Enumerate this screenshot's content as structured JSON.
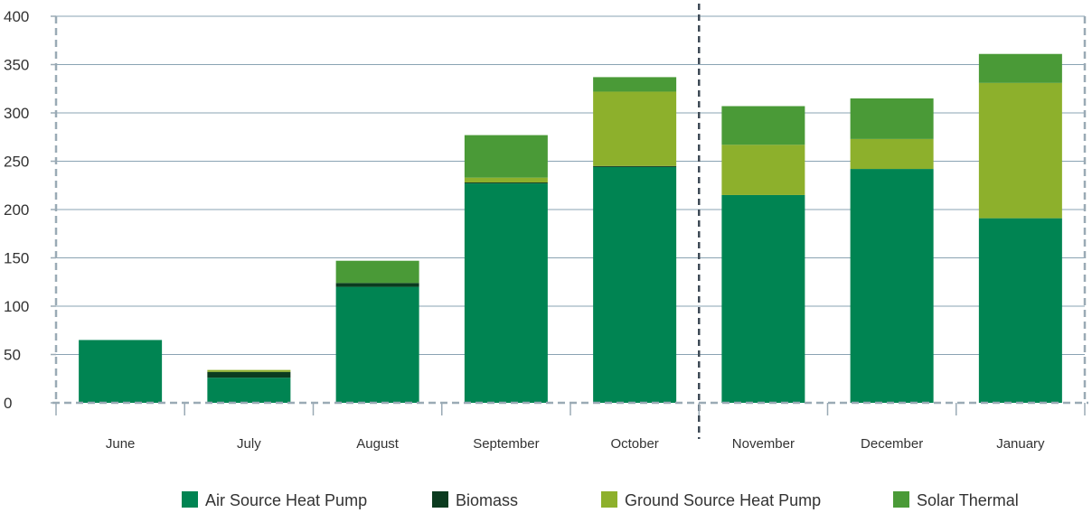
{
  "chart_data": {
    "type": "bar",
    "stacked": true,
    "categories": [
      "June",
      "July",
      "August",
      "September",
      "October",
      "November",
      "December",
      "January"
    ],
    "series": [
      {
        "name": "Air Source Heat Pump",
        "color": "#008452",
        "values": [
          65,
          26,
          120,
          227,
          244,
          215,
          242,
          191
        ]
      },
      {
        "name": "Biomass",
        "color": "#0b3b1f",
        "values": [
          0,
          6,
          4,
          1,
          1,
          0,
          0,
          0
        ]
      },
      {
        "name": "Ground Source Heat Pump",
        "color": "#8db02c",
        "values": [
          0,
          2,
          0,
          5,
          77,
          52,
          31,
          140
        ]
      },
      {
        "name": "Solar Thermal",
        "color": "#4a9a37",
        "values": [
          0,
          0,
          23,
          44,
          15,
          40,
          42,
          30
        ]
      }
    ],
    "yticks": [
      "0",
      "50",
      "100",
      "150",
      "200",
      "250",
      "300",
      "350",
      "400"
    ],
    "ylim": [
      0,
      400
    ],
    "grid": true,
    "divider_after": "October",
    "legend_position": "bottom"
  }
}
